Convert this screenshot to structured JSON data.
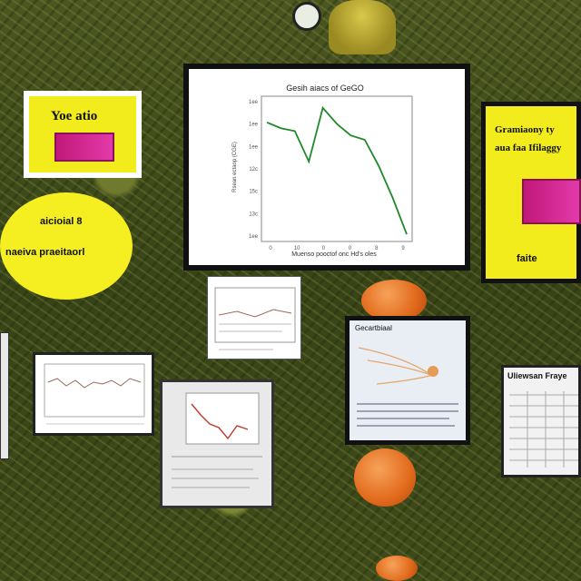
{
  "sign_left": {
    "heading": "Yoe atio"
  },
  "oval": {
    "line1": "aicioial 8",
    "line2": "naeiva praeitaorl"
  },
  "main_chart": {
    "title": "Gesih aiacs of GeGO",
    "ylabel": "Rsean ectaop (CGE)",
    "xlabel": "Muenso pooctof onc Hd's oles",
    "line_color": "#1e8a2a"
  },
  "chart_data": {
    "type": "line",
    "title": "Gesih aiacs of GeGO",
    "xlabel": "Muenso pooctof onc Hd's oles",
    "ylabel": "Rsean ectaop (CGE)",
    "ytick_labels": [
      "1ee",
      "1ee",
      "1ee",
      "12c",
      "15c",
      "13c",
      "1ee"
    ],
    "xtick_labels": [
      "0",
      "10",
      "0",
      "0",
      "8",
      "9"
    ],
    "x": [
      0,
      1,
      2,
      3,
      4,
      5,
      6,
      7,
      8,
      9,
      10
    ],
    "values": [
      82,
      78,
      76,
      55,
      92,
      81,
      73,
      70,
      52,
      30,
      5
    ],
    "ylim": [
      0,
      100
    ],
    "grid": false
  },
  "sign_right": {
    "line1": "Gramiaony ty",
    "line2": "aua faa Ifilaggy",
    "footer": "faite"
  },
  "poster_right": {
    "title": "Uliewsan Fraye"
  },
  "poster_mid": {
    "title": "Gecartbiaal"
  }
}
